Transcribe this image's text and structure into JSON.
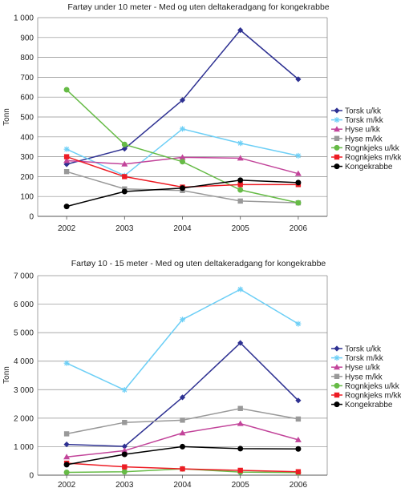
{
  "chart_data": [
    {
      "type": "line",
      "title": "Fartøy under 10 meter - Med og uten deltakeradgang for kongekrabbe",
      "xlabel": "",
      "ylabel": "Tonn",
      "categories": [
        "2002",
        "2003",
        "2004",
        "2005",
        "2006"
      ],
      "ylim": [
        0,
        1000
      ],
      "yticks": [
        0,
        100,
        200,
        300,
        400,
        500,
        600,
        700,
        800,
        900,
        1000
      ],
      "ytick_labels": [
        "0",
        "100",
        "200",
        "300",
        "400",
        "500",
        "600",
        "700",
        "800",
        "900",
        "1 000"
      ],
      "grid": "horizontal",
      "legend": "right",
      "series": [
        {
          "name": "Torsk u/kk",
          "color": "#2e3192",
          "marker": "diamond",
          "values": [
            262,
            340,
            585,
            937,
            690
          ]
        },
        {
          "name": "Torsk m/kk",
          "color": "#6dcff6",
          "marker": "star",
          "values": [
            338,
            205,
            440,
            368,
            305
          ]
        },
        {
          "name": "Hyse u/kk",
          "color": "#c2449a",
          "marker": "triangle",
          "values": [
            280,
            263,
            297,
            293,
            215
          ]
        },
        {
          "name": "Hyse m/kk",
          "color": "#999999",
          "marker": "square",
          "values": [
            225,
            138,
            130,
            77,
            68
          ]
        },
        {
          "name": "Rognkjeks u/kk",
          "color": "#66bb46",
          "marker": "circle",
          "values": [
            637,
            362,
            275,
            133,
            68
          ]
        },
        {
          "name": "Rognkjeks m/kk",
          "color": "#ed1c24",
          "marker": "square",
          "values": [
            300,
            200,
            147,
            160,
            160
          ]
        },
        {
          "name": "Kongekrabbe",
          "color": "#000000",
          "marker": "circle",
          "values": [
            50,
            125,
            142,
            182,
            170
          ]
        }
      ]
    },
    {
      "type": "line",
      "title": "Fartøy 10 - 15 meter - Med og uten deltakeradgang for kongekrabbe",
      "xlabel": "",
      "ylabel": "Tonn",
      "categories": [
        "2002",
        "2003",
        "2004",
        "2005",
        "2006"
      ],
      "ylim": [
        0,
        7000
      ],
      "yticks": [
        0,
        1000,
        2000,
        3000,
        4000,
        5000,
        6000,
        7000
      ],
      "ytick_labels": [
        "0",
        "1 000",
        "2 000",
        "3 000",
        "4 000",
        "5 000",
        "6 000",
        "7 000"
      ],
      "grid": "horizontal",
      "legend": "right",
      "series": [
        {
          "name": "Torsk u/kk",
          "color": "#2e3192",
          "marker": "diamond",
          "values": [
            1080,
            1010,
            2730,
            4640,
            2620
          ]
        },
        {
          "name": "Torsk m/kk",
          "color": "#6dcff6",
          "marker": "star",
          "values": [
            3930,
            2990,
            5460,
            6520,
            5310
          ]
        },
        {
          "name": "Hyse u/kk",
          "color": "#c2449a",
          "marker": "triangle",
          "values": [
            640,
            860,
            1480,
            1810,
            1240
          ]
        },
        {
          "name": "Hyse m/kk",
          "color": "#999999",
          "marker": "square",
          "values": [
            1450,
            1850,
            1930,
            2340,
            1970
          ]
        },
        {
          "name": "Rognkjeks u/kk",
          "color": "#66bb46",
          "marker": "circle",
          "values": [
            100,
            120,
            220,
            110,
            90
          ]
        },
        {
          "name": "Rognkjeks m/kk",
          "color": "#ed1c24",
          "marker": "square",
          "values": [
            420,
            290,
            220,
            170,
            120
          ]
        },
        {
          "name": "Kongekrabbe",
          "color": "#000000",
          "marker": "circle",
          "values": [
            370,
            730,
            1000,
            930,
            920
          ]
        }
      ]
    }
  ]
}
